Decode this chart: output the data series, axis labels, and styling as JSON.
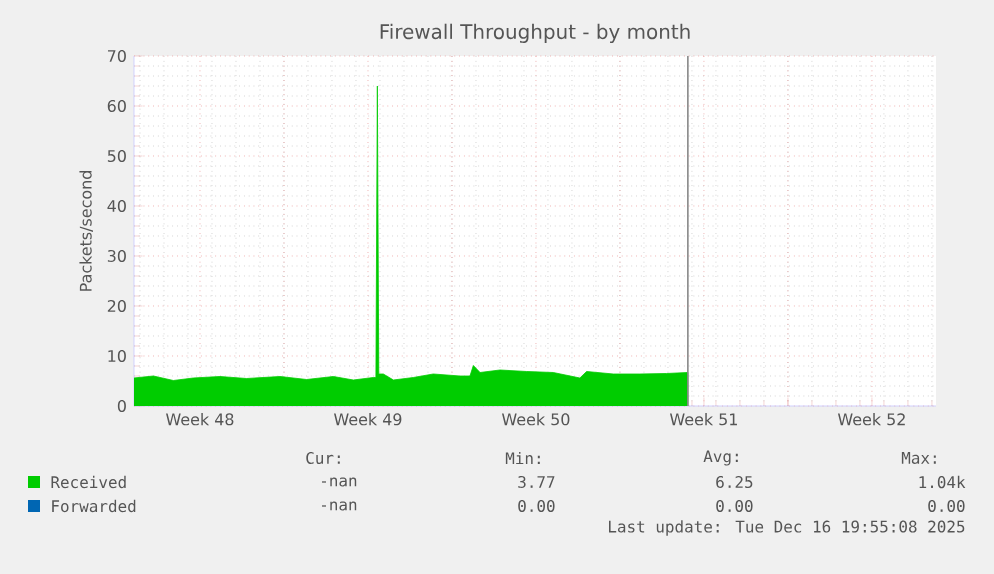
{
  "chart_data": {
    "type": "area",
    "title": "Firewall Throughput - by month",
    "ylabel": "Packets/second",
    "xlim": [
      "2025-11-23T18:00",
      "2025-12-27T04:05"
    ],
    "ylim": [
      0,
      70
    ],
    "yticks": [
      0,
      10,
      20,
      30,
      40,
      50,
      60,
      70
    ],
    "xticks": [
      {
        "value": "2025-11-26T12:00",
        "label": "Week 48"
      },
      {
        "value": "2025-11-30",
        "label": null
      },
      {
        "value": "2025-12-03T12:00",
        "label": "Week 49"
      },
      {
        "value": "2025-12-07",
        "label": null
      },
      {
        "value": "2025-12-10T12:00",
        "label": "Week 50"
      },
      {
        "value": "2025-12-14",
        "label": null
      },
      {
        "value": "2025-12-17T12:00",
        "label": "Week 51"
      },
      {
        "value": "2025-12-21",
        "label": null
      },
      {
        "value": "2025-12-24T12:00",
        "label": "Week 52"
      }
    ],
    "grid": true,
    "legend": "bottom",
    "series": [
      {
        "name": "Received",
        "color": "#00cc00",
        "x": [
          "2025-11-23T18:00",
          "2025-11-24T13:26",
          "2025-11-25T09:22",
          "2025-11-26T05:17",
          "2025-11-27T07:55",
          "2025-11-28T10:34",
          "2025-11-29T19:55",
          "2025-11-30T22:34",
          "2025-12-02T01:26",
          "2025-12-02T21:22",
          "2025-12-03T17:17",
          "2025-12-03T19:55",
          "2025-12-03T21:22",
          "2025-12-03T22:48",
          "2025-12-04T03:22",
          "2025-12-04T13:26",
          "2025-12-05T09:22",
          "2025-12-06T05:17",
          "2025-12-07T07:55",
          "2025-12-07T18:00",
          "2025-12-07T21:22",
          "2025-12-08T04:05",
          "2025-12-09T00:00",
          "2025-12-10T02:38",
          "2025-12-11T05:17",
          "2025-12-12T07:55",
          "2025-12-12T14:38",
          "2025-12-13T17:17",
          "2025-12-14T19:55",
          "2025-12-15T22:34",
          "2025-12-16T19:55"
        ],
        "values": [
          5.6,
          6.0,
          5.1,
          5.6,
          5.9,
          5.5,
          5.9,
          5.3,
          5.9,
          5.2,
          5.7,
          5.7,
          64,
          6.4,
          6.4,
          5.2,
          5.7,
          6.4,
          6.0,
          6.0,
          8.1,
          6.7,
          7.2,
          6.9,
          6.7,
          5.6,
          6.9,
          6.4,
          6.4,
          6.5,
          6.7
        ]
      },
      {
        "name": "Forwarded",
        "color": "#0066b3",
        "values": [
          null
        ]
      }
    ],
    "ref_lines": [
      {
        "axis": "x",
        "value": "2025-12-16T19:55",
        "color": "#888888"
      }
    ],
    "annotations": [
      "Cur:",
      "Min:",
      "Avg:",
      "Max:",
      "-nan",
      "3.77",
      "6.25",
      "1.04k",
      "-nan",
      "0.00",
      "0.00",
      "0.00",
      "Last update: Tue Dec 16 19:55:08 2025"
    ]
  }
}
